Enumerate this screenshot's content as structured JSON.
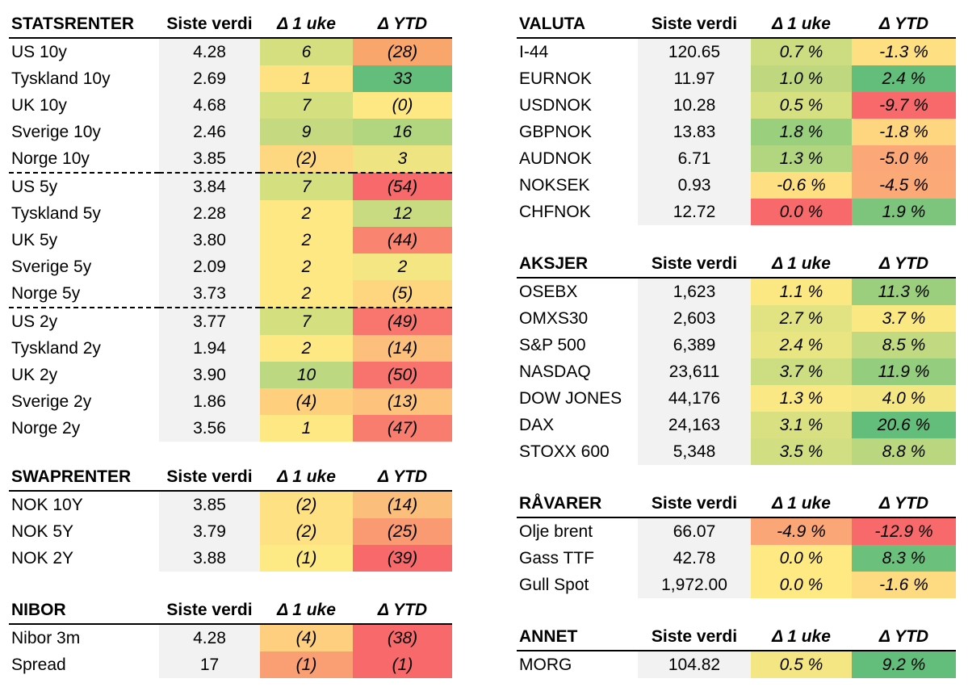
{
  "tables": {
    "statsrenter": {
      "title": "STATSRENTER",
      "headers": [
        "Siste verdi",
        "Δ 1 uke",
        "Δ YTD"
      ],
      "group_end_rows": [
        4,
        9
      ],
      "rows": [
        {
          "name": "US 10y",
          "value": "4.28",
          "week": "6",
          "ytd": "(28)",
          "week_color": "#d6df80",
          "ytd_color": "#f9a66c"
        },
        {
          "name": "Tyskland 10y",
          "value": "2.69",
          "week": "1",
          "ytd": "33",
          "week_color": "#fee282",
          "ytd_color": "#63be7b"
        },
        {
          "name": "UK 10y",
          "value": "4.68",
          "week": "7",
          "ytd": "(0)",
          "week_color": "#d4df80",
          "ytd_color": "#fde883"
        },
        {
          "name": "Sverige 10y",
          "value": "2.46",
          "week": "9",
          "ytd": "16",
          "week_color": "#c5da80",
          "ytd_color": "#b2d580"
        },
        {
          "name": "Norge 10y",
          "value": "3.85",
          "week": "(2)",
          "ytd": "3",
          "week_color": "#fed880",
          "ytd_color": "#eee582"
        },
        {
          "name": "US 5y",
          "value": "3.84",
          "week": "7",
          "ytd": "(54)",
          "week_color": "#d4df80",
          "ytd_color": "#f8696b"
        },
        {
          "name": "Tyskland 5y",
          "value": "2.28",
          "week": "2",
          "ytd": "12",
          "week_color": "#fde883",
          "ytd_color": "#c8db80"
        },
        {
          "name": "UK 5y",
          "value": "3.80",
          "week": "2",
          "ytd": "(44)",
          "week_color": "#fde883",
          "ytd_color": "#f98570"
        },
        {
          "name": "Sverige 5y",
          "value": "2.09",
          "week": "2",
          "ytd": "2",
          "week_color": "#fde883",
          "ytd_color": "#f4e683"
        },
        {
          "name": "Norge 5y",
          "value": "3.73",
          "week": "2",
          "ytd": "(5)",
          "week_color": "#fde883",
          "ytd_color": "#fed680"
        },
        {
          "name": "US 2y",
          "value": "3.77",
          "week": "7",
          "ytd": "(49)",
          "week_color": "#d4df80",
          "ytd_color": "#f8766e"
        },
        {
          "name": "Tyskland 2y",
          "value": "1.94",
          "week": "2",
          "ytd": "(14)",
          "week_color": "#fde883",
          "ytd_color": "#fdc07c"
        },
        {
          "name": "UK 2y",
          "value": "3.90",
          "week": "10",
          "ytd": "(50)",
          "week_color": "#bcd880",
          "ytd_color": "#f8736d"
        },
        {
          "name": "Sverige 2y",
          "value": "1.86",
          "week": "(4)",
          "ytd": "(13)",
          "week_color": "#fed07e",
          "ytd_color": "#fdc37d"
        },
        {
          "name": "Norge 2y",
          "value": "3.56",
          "week": "1",
          "ytd": "(47)",
          "week_color": "#fee883",
          "ytd_color": "#f97d6f"
        }
      ]
    },
    "swaprenter": {
      "title": "SWAPRENTER",
      "headers": [
        "Siste verdi",
        "Δ 1 uke",
        "Δ YTD"
      ],
      "rows": [
        {
          "name": "NOK 10Y",
          "value": "3.85",
          "week": "(2)",
          "ytd": "(14)",
          "week_color": "#fee182",
          "ytd_color": "#fcbe7b"
        },
        {
          "name": "NOK 5Y",
          "value": "3.79",
          "week": "(2)",
          "ytd": "(25)",
          "week_color": "#fee182",
          "ytd_color": "#fa9a73"
        },
        {
          "name": "NOK 2Y",
          "value": "3.88",
          "week": "(1)",
          "ytd": "(39)",
          "week_color": "#feea84",
          "ytd_color": "#f8696b"
        }
      ]
    },
    "nibor": {
      "title": "NIBOR",
      "headers": [
        "Siste verdi",
        "Δ 1 uke",
        "Δ YTD"
      ],
      "rows": [
        {
          "name": "Nibor 3m",
          "value": "4.28",
          "week": "(4)",
          "ytd": "(38)",
          "week_color": "#fdcf7e",
          "ytd_color": "#f8696b"
        },
        {
          "name": "Spread",
          "value": "17",
          "week": "(1)",
          "ytd": "(1)",
          "week_color": "#fa9f74",
          "ytd_color": "#f8696b"
        }
      ]
    },
    "valuta": {
      "title": "VALUTA",
      "headers": [
        "Siste verdi",
        "Δ 1 uke",
        "Δ YTD"
      ],
      "rows": [
        {
          "name": "I-44",
          "value": "120.65",
          "week": "0.7 %",
          "ytd": "-1.3 %",
          "week_color": "#cbdc81",
          "ytd_color": "#fedf82"
        },
        {
          "name": "EURNOK",
          "value": "11.97",
          "week": "1.0 %",
          "ytd": "2.4 %",
          "week_color": "#bfd880",
          "ytd_color": "#63be7b"
        },
        {
          "name": "USDNOK",
          "value": "10.28",
          "week": "0.5 %",
          "ytd": "-9.7 %",
          "week_color": "#d6e081",
          "ytd_color": "#f8696b"
        },
        {
          "name": "GBPNOK",
          "value": "13.83",
          "week": "1.8 %",
          "ytd": "-1.8 %",
          "week_color": "#9acf7e",
          "ytd_color": "#fed680"
        },
        {
          "name": "AUDNOK",
          "value": "6.71",
          "week": "1.3 %",
          "ytd": "-5.0 %",
          "week_color": "#b2d57f",
          "ytd_color": "#fca777"
        },
        {
          "name": "NOKSEK",
          "value": "0.93",
          "week": "-0.6 %",
          "ytd": "-4.5 %",
          "week_color": "#fee082",
          "ytd_color": "#fbaa77"
        },
        {
          "name": "CHFNOK",
          "value": "12.72",
          "week": "0.0 %",
          "ytd": "1.9 %",
          "week_color": "#f8696b",
          "ytd_color": "#7dc57d"
        }
      ]
    },
    "aksjer": {
      "title": "AKSJER",
      "headers": [
        "Siste verdi",
        "Δ 1 uke",
        "Δ YTD"
      ],
      "rows": [
        {
          "name": "OSEBX",
          "value": "1,623",
          "week": "1.1 %",
          "ytd": "11.3 %",
          "week_color": "#fbe883",
          "ytd_color": "#9bcf7e"
        },
        {
          "name": "OMXS30",
          "value": "2,603",
          "week": "2.7 %",
          "ytd": "3.7 %",
          "week_color": "#e1e382",
          "ytd_color": "#fae883"
        },
        {
          "name": "S&P 500",
          "value": "6,389",
          "week": "2.4 %",
          "ytd": "8.5 %",
          "week_color": "#e9e582",
          "ytd_color": "#c1d980"
        },
        {
          "name": "NASDAQ",
          "value": "23,611",
          "week": "3.7 %",
          "ytd": "11.9 %",
          "week_color": "#cddd81",
          "ytd_color": "#94cd7e"
        },
        {
          "name": "DOW JONES",
          "value": "44,176",
          "week": "1.3 %",
          "ytd": "4.0 %",
          "week_color": "#f9e883",
          "ytd_color": "#f4e683"
        },
        {
          "name": "DAX",
          "value": "24,163",
          "week": "3.1 %",
          "ytd": "20.6 %",
          "week_color": "#d8e081",
          "ytd_color": "#63be7b"
        },
        {
          "name": "STOXX 600",
          "value": "5,348",
          "week": "3.5 %",
          "ytd": "8.8 %",
          "week_color": "#d1de81",
          "ytd_color": "#bad780"
        }
      ]
    },
    "ravarer": {
      "title": "RÅVARER",
      "headers": [
        "Siste verdi",
        "Δ 1 uke",
        "Δ YTD"
      ],
      "rows": [
        {
          "name": "Olje brent",
          "value": "66.07",
          "week": "-4.9 %",
          "ytd": "-12.9 %",
          "week_color": "#fba676",
          "ytd_color": "#f8696b"
        },
        {
          "name": "Gass TTF",
          "value": "42.78",
          "week": "0.0 %",
          "ytd": "8.3 %",
          "week_color": "#fee983",
          "ytd_color": "#6bc07b"
        },
        {
          "name": "Gull Spot",
          "value": "1,972.00",
          "week": "0.0 %",
          "ytd": "-1.6 %",
          "week_color": "#fee983",
          "ytd_color": "#fedb81"
        }
      ]
    },
    "annet": {
      "title": "ANNET",
      "headers": [
        "Siste verdi",
        "Δ 1 uke",
        "Δ YTD"
      ],
      "rows": [
        {
          "name": "MORG",
          "value": "104.82",
          "week": "0.5 %",
          "ytd": "9.2 %",
          "week_color": "#f4e683",
          "ytd_color": "#63be7b"
        }
      ]
    }
  }
}
